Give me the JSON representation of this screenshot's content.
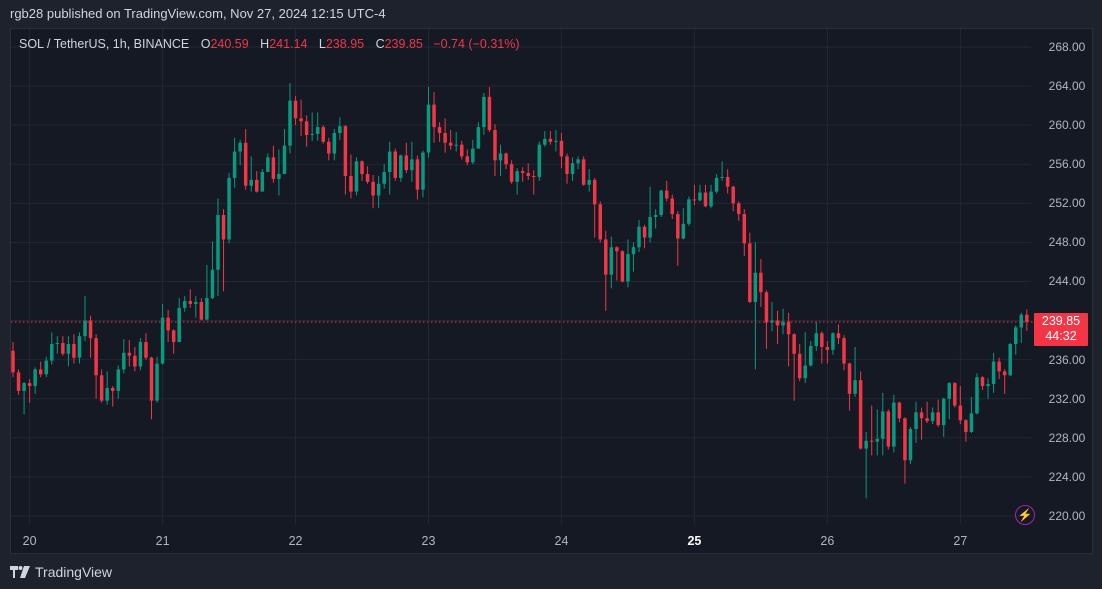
{
  "header": {
    "published": "rgb28 published on TradingView.com, Nov 27, 2024 12:15 UTC-4"
  },
  "legend": {
    "symbol": "SOL / TetherUS, 1h, BINANCE",
    "o_label": "O",
    "o_value": "240.59",
    "h_label": "H",
    "h_value": "241.14",
    "l_label": "L",
    "l_value": "238.95",
    "c_label": "C",
    "c_value": "239.85",
    "change": "−0.74 (−0.31%)"
  },
  "last_price": {
    "price": "239.85",
    "countdown": "44:32",
    "value": 239.85
  },
  "footer": {
    "brand": "TradingView"
  },
  "colors": {
    "up": "#089981",
    "down": "#f23645",
    "grid": "#232733",
    "background": "#151924"
  },
  "chart_data": {
    "type": "candlestick",
    "title": "SOL / TetherUS, 1h, BINANCE",
    "interval": "1h",
    "ylim": [
      218.8,
      269.8
    ],
    "grid": true,
    "y_ticks": [
      {
        "value": 268,
        "label": "268.00"
      },
      {
        "value": 264,
        "label": "264.00"
      },
      {
        "value": 260,
        "label": "260.00"
      },
      {
        "value": 256,
        "label": "256.00"
      },
      {
        "value": 252,
        "label": "252.00"
      },
      {
        "value": 248,
        "label": "248.00"
      },
      {
        "value": 244,
        "label": "244.00"
      },
      {
        "value": 236,
        "label": "236.00"
      },
      {
        "value": 232,
        "label": "232.00"
      },
      {
        "value": 228,
        "label": "228.00"
      },
      {
        "value": 224,
        "label": "224.00"
      },
      {
        "value": 220,
        "label": "220.00"
      }
    ],
    "x_ticks": [
      {
        "index": 3,
        "label": "20"
      },
      {
        "index": 27,
        "label": "21"
      },
      {
        "index": 51,
        "label": "22"
      },
      {
        "index": 75,
        "label": "23"
      },
      {
        "index": 99,
        "label": "24"
      },
      {
        "index": 123,
        "label": "25",
        "bold": true
      },
      {
        "index": 147,
        "label": "26"
      },
      {
        "index": 171,
        "label": "27"
      }
    ],
    "candles_ohlc": [
      [
        236.9,
        237.8,
        234.2,
        234.7
      ],
      [
        234.7,
        235.0,
        232.4,
        232.8
      ],
      [
        232.8,
        233.7,
        230.4,
        233.6
      ],
      [
        233.6,
        234.0,
        231.6,
        233.3
      ],
      [
        233.3,
        235.2,
        232.5,
        235.0
      ],
      [
        235.0,
        235.8,
        234.2,
        234.5
      ],
      [
        234.5,
        236.3,
        234.2,
        235.9
      ],
      [
        235.9,
        238.8,
        235.5,
        237.6
      ],
      [
        237.6,
        238.4,
        236.6,
        237.7
      ],
      [
        237.7,
        238.4,
        236.4,
        236.6
      ],
      [
        236.6,
        238.4,
        235.3,
        237.6
      ],
      [
        237.6,
        238.6,
        235.6,
        236.2
      ],
      [
        236.2,
        238.8,
        235.6,
        238.4
      ],
      [
        238.4,
        242.5,
        237.9,
        240.0
      ],
      [
        240.0,
        240.5,
        236.2,
        238.2
      ],
      [
        238.2,
        238.6,
        232.0,
        234.4
      ],
      [
        234.4,
        235.0,
        231.6,
        231.8
      ],
      [
        231.8,
        234.8,
        231.4,
        233.1
      ],
      [
        233.1,
        233.3,
        231.2,
        232.8
      ],
      [
        232.8,
        235.4,
        232.0,
        235.0
      ],
      [
        235.0,
        238.1,
        234.6,
        236.7
      ],
      [
        236.7,
        238.0,
        235.3,
        236.4
      ],
      [
        236.4,
        237.3,
        234.8,
        235.3
      ],
      [
        235.3,
        238.2,
        234.9,
        237.8
      ],
      [
        237.8,
        238.7,
        236.0,
        236.2
      ],
      [
        236.2,
        236.3,
        229.9,
        231.8
      ],
      [
        231.8,
        236.3,
        231.6,
        235.6
      ],
      [
        235.6,
        241.7,
        235.5,
        240.3
      ],
      [
        240.3,
        241.1,
        237.8,
        239.0
      ],
      [
        239.0,
        239.1,
        236.6,
        237.8
      ],
      [
        237.8,
        242.3,
        237.8,
        241.3
      ],
      [
        241.3,
        242.5,
        240.9,
        242.0
      ],
      [
        242.0,
        243.2,
        241.3,
        241.7
      ],
      [
        241.7,
        242.5,
        240.3,
        241.9
      ],
      [
        241.9,
        242.3,
        240.0,
        240.1
      ],
      [
        240.1,
        245.7,
        240.0,
        242.3
      ],
      [
        242.3,
        248.1,
        242.2,
        245.2
      ],
      [
        245.2,
        252.5,
        242.5,
        250.8
      ],
      [
        250.8,
        251.4,
        243.0,
        248.3
      ],
      [
        248.3,
        255.1,
        247.9,
        254.6
      ],
      [
        254.6,
        258.7,
        253.6,
        257.3
      ],
      [
        257.3,
        258.5,
        255.9,
        258.2
      ],
      [
        258.2,
        259.6,
        253.4,
        253.8
      ],
      [
        253.8,
        256.8,
        253.2,
        254.4
      ],
      [
        254.4,
        255.3,
        253.1,
        253.2
      ],
      [
        253.2,
        255.5,
        253.2,
        255.2
      ],
      [
        255.2,
        257.1,
        255.2,
        256.7
      ],
      [
        256.7,
        257.9,
        254.1,
        254.5
      ],
      [
        254.5,
        257.5,
        252.8,
        255.0
      ],
      [
        255.0,
        259.6,
        255.0,
        257.9
      ],
      [
        257.9,
        264.3,
        257.1,
        262.5
      ],
      [
        262.5,
        263.0,
        260.0,
        260.7
      ],
      [
        260.7,
        262.6,
        258.9,
        260.4
      ],
      [
        260.4,
        261.0,
        257.8,
        259.0
      ],
      [
        259.0,
        261.3,
        258.4,
        259.1
      ],
      [
        259.1,
        261.3,
        258.4,
        259.8
      ],
      [
        259.8,
        260.0,
        258.1,
        258.3
      ],
      [
        258.3,
        258.7,
        256.4,
        257.1
      ],
      [
        257.1,
        259.6,
        256.4,
        259.2
      ],
      [
        259.2,
        260.8,
        258.5,
        259.9
      ],
      [
        259.9,
        260.0,
        252.9,
        254.8
      ],
      [
        254.8,
        257.0,
        252.5,
        253.2
      ],
      [
        253.2,
        256.7,
        252.8,
        256.3
      ],
      [
        256.3,
        256.4,
        254.3,
        255.0
      ],
      [
        255.0,
        255.8,
        254.0,
        254.2
      ],
      [
        254.2,
        254.9,
        251.5,
        252.8
      ],
      [
        252.8,
        254.8,
        251.5,
        254.0
      ],
      [
        254.0,
        256.0,
        253.5,
        255.2
      ],
      [
        255.2,
        258.3,
        252.9,
        257.3
      ],
      [
        257.3,
        257.6,
        254.3,
        254.6
      ],
      [
        254.6,
        257.0,
        254.2,
        256.9
      ],
      [
        256.9,
        258.2,
        255.1,
        255.4
      ],
      [
        255.4,
        258.3,
        254.2,
        256.5
      ],
      [
        256.5,
        256.9,
        252.4,
        253.4
      ],
      [
        253.4,
        257.4,
        252.6,
        257.2
      ],
      [
        257.2,
        263.9,
        256.7,
        262.1
      ],
      [
        262.1,
        263.4,
        258.2,
        259.8
      ],
      [
        259.8,
        260.3,
        258.3,
        259.2
      ],
      [
        259.2,
        260.7,
        257.2,
        258.2
      ],
      [
        258.2,
        259.5,
        257.5,
        257.9
      ],
      [
        257.9,
        259.3,
        257.3,
        258.0
      ],
      [
        258.0,
        258.4,
        256.5,
        256.8
      ],
      [
        256.8,
        257.5,
        255.9,
        256.2
      ],
      [
        256.2,
        258.5,
        256.0,
        257.6
      ],
      [
        257.6,
        260.3,
        257.6,
        259.8
      ],
      [
        259.8,
        263.3,
        259.0,
        262.9
      ],
      [
        262.9,
        263.9,
        259.3,
        259.5
      ],
      [
        259.5,
        260.1,
        254.8,
        256.4
      ],
      [
        256.4,
        258.0,
        254.8,
        257.1
      ],
      [
        257.1,
        257.2,
        255.5,
        256.0
      ],
      [
        256.0,
        256.4,
        254.0,
        254.2
      ],
      [
        254.2,
        255.6,
        252.9,
        255.3
      ],
      [
        255.3,
        255.7,
        254.2,
        255.1
      ],
      [
        255.1,
        256.1,
        254.4,
        254.8
      ],
      [
        254.8,
        255.4,
        252.9,
        254.7
      ],
      [
        254.7,
        258.3,
        254.3,
        258.0
      ],
      [
        258.0,
        259.4,
        257.8,
        258.6
      ],
      [
        258.6,
        259.4,
        258.0,
        258.3
      ],
      [
        258.3,
        259.5,
        257.3,
        258.4
      ],
      [
        258.4,
        259.2,
        255.6,
        256.8
      ],
      [
        256.8,
        257.1,
        254.0,
        255.0
      ],
      [
        255.0,
        256.7,
        254.3,
        256.1
      ],
      [
        256.1,
        256.8,
        255.5,
        256.5
      ],
      [
        256.5,
        256.8,
        253.8,
        253.9
      ],
      [
        253.9,
        255.5,
        253.2,
        254.4
      ],
      [
        254.4,
        254.6,
        248.5,
        251.9
      ],
      [
        251.9,
        252.2,
        248.0,
        248.3
      ],
      [
        248.3,
        249.2,
        241.0,
        244.7
      ],
      [
        244.7,
        248.6,
        243.3,
        247.5
      ],
      [
        247.5,
        247.6,
        244.1,
        247.1
      ],
      [
        247.1,
        247.2,
        243.9,
        244.0
      ],
      [
        244.0,
        248.3,
        243.4,
        246.8
      ],
      [
        246.8,
        248.0,
        245.0,
        247.5
      ],
      [
        247.5,
        250.3,
        247.0,
        249.6
      ],
      [
        249.6,
        249.8,
        247.4,
        248.5
      ],
      [
        248.5,
        253.7,
        248.0,
        250.6
      ],
      [
        250.6,
        251.4,
        249.4,
        250.8
      ],
      [
        250.8,
        253.4,
        250.6,
        253.3
      ],
      [
        253.3,
        254.3,
        252.2,
        252.5
      ],
      [
        252.5,
        252.9,
        250.4,
        250.9
      ],
      [
        250.9,
        251.2,
        245.6,
        248.4
      ],
      [
        248.4,
        251.5,
        248.3,
        249.9
      ],
      [
        249.9,
        252.7,
        249.7,
        252.4
      ],
      [
        252.4,
        253.9,
        251.8,
        252.3
      ],
      [
        252.3,
        253.9,
        252.2,
        253.1
      ],
      [
        253.1,
        253.9,
        251.6,
        251.7
      ],
      [
        251.7,
        253.9,
        251.5,
        253.2
      ],
      [
        253.2,
        255.0,
        253.0,
        254.6
      ],
      [
        254.6,
        256.3,
        254.3,
        254.7
      ],
      [
        254.7,
        255.5,
        253.0,
        253.7
      ],
      [
        253.7,
        253.8,
        251.2,
        252.0
      ],
      [
        252.0,
        252.2,
        250.2,
        250.9
      ],
      [
        250.9,
        251.4,
        246.6,
        247.9
      ],
      [
        247.9,
        249.0,
        241.8,
        241.9
      ],
      [
        241.9,
        248.0,
        235.0,
        244.9
      ],
      [
        244.9,
        246.3,
        241.4,
        242.9
      ],
      [
        242.9,
        243.1,
        237.1,
        239.8
      ],
      [
        239.8,
        241.9,
        238.9,
        240.0
      ],
      [
        240.0,
        241.0,
        237.6,
        239.5
      ],
      [
        239.5,
        241.2,
        238.6,
        239.9
      ],
      [
        239.9,
        240.8,
        235.3,
        238.6
      ],
      [
        238.6,
        238.7,
        231.8,
        236.6
      ],
      [
        236.6,
        237.6,
        233.8,
        234.1
      ],
      [
        234.1,
        238.8,
        233.6,
        235.4
      ],
      [
        235.4,
        237.9,
        235.3,
        237.4
      ],
      [
        237.4,
        239.9,
        236.9,
        238.7
      ],
      [
        238.7,
        238.9,
        235.6,
        237.3
      ],
      [
        237.3,
        237.9,
        235.6,
        237.0
      ],
      [
        237.0,
        238.8,
        236.5,
        238.7
      ],
      [
        238.7,
        239.6,
        237.6,
        238.2
      ],
      [
        238.2,
        238.5,
        234.9,
        235.6
      ],
      [
        235.6,
        235.7,
        230.8,
        232.5
      ],
      [
        232.5,
        237.3,
        232.2,
        233.9
      ],
      [
        233.9,
        234.8,
        226.8,
        226.9
      ],
      [
        226.9,
        228.6,
        221.8,
        227.7
      ],
      [
        227.7,
        231.3,
        226.2,
        227.6
      ],
      [
        227.6,
        230.9,
        226.2,
        227.9
      ],
      [
        227.9,
        232.6,
        226.2,
        230.7
      ],
      [
        230.7,
        230.9,
        226.8,
        227.1
      ],
      [
        227.1,
        232.4,
        226.5,
        231.6
      ],
      [
        231.6,
        231.7,
        229.6,
        230.0
      ],
      [
        230.0,
        230.1,
        223.3,
        225.7
      ],
      [
        225.7,
        229.1,
        225.3,
        228.9
      ],
      [
        228.9,
        231.7,
        227.5,
        230.6
      ],
      [
        230.6,
        231.1,
        227.8,
        230.0
      ],
      [
        230.0,
        231.7,
        229.5,
        229.7
      ],
      [
        229.7,
        231.1,
        229.4,
        230.6
      ],
      [
        230.6,
        231.9,
        229.1,
        229.3
      ],
      [
        229.3,
        232.1,
        228.1,
        232.0
      ],
      [
        232.0,
        233.7,
        229.9,
        233.6
      ],
      [
        233.6,
        233.7,
        231.1,
        231.3
      ],
      [
        231.3,
        233.3,
        229.4,
        229.8
      ],
      [
        229.8,
        229.9,
        227.6,
        228.6
      ],
      [
        228.6,
        232.2,
        228.5,
        230.5
      ],
      [
        230.5,
        234.6,
        230.4,
        234.2
      ],
      [
        234.2,
        234.3,
        232.9,
        233.3
      ],
      [
        233.3,
        234.1,
        232.0,
        233.5
      ],
      [
        233.5,
        236.7,
        232.6,
        235.8
      ],
      [
        235.8,
        236.2,
        234.0,
        234.8
      ],
      [
        234.8,
        235.0,
        232.5,
        234.4
      ],
      [
        234.4,
        237.7,
        234.3,
        237.6
      ],
      [
        237.6,
        239.5,
        236.5,
        239.3
      ],
      [
        239.3,
        240.8,
        237.7,
        240.59
      ],
      [
        240.59,
        241.14,
        238.95,
        239.85
      ]
    ]
  }
}
